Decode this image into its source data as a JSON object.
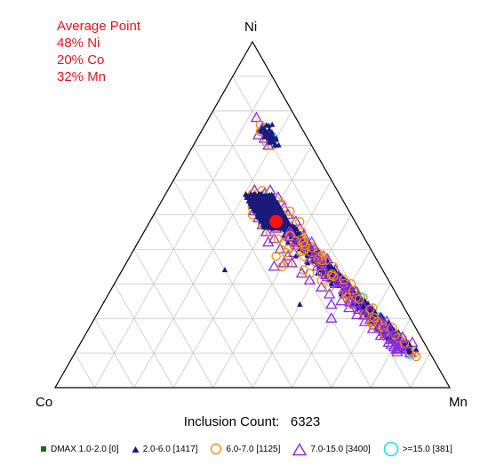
{
  "average_point": {
    "title": "Average Point",
    "ni": "48% Ni",
    "co": "20% Co",
    "mn": "32% Mn"
  },
  "vertices": {
    "top": "Ni",
    "left": "Co",
    "right": "Mn"
  },
  "inclusion_count": {
    "label": "Inclusion Count:",
    "value": "6323"
  },
  "colors": {
    "grid": "#c8c8c8",
    "frame": "#000000",
    "average_marker": "#ff1010",
    "text_red": "#e8141b"
  },
  "chart_data": {
    "type": "scatter",
    "projection": "ternary",
    "components": [
      "Ni",
      "Co",
      "Mn"
    ],
    "units": "%",
    "grid_step_percent": 10,
    "grid": true,
    "legend_position": "bottom",
    "average": {
      "Ni": 48,
      "Co": 20,
      "Mn": 32
    },
    "series": [
      {
        "name": "DMAX 1.0-2.0 [0]",
        "marker": "square",
        "color": "#1a6b1a",
        "count": 0,
        "points": []
      },
      {
        "name": "2.0-6.0 [1417]",
        "marker": "triangle-filled",
        "color": "#1a1a7a",
        "count": 1417,
        "points": [
          [
            76,
            7,
            17
          ],
          [
            72,
            10,
            18
          ],
          [
            73,
            10,
            17
          ],
          [
            72,
            8,
            20
          ],
          [
            73,
            9,
            18
          ],
          [
            71,
            10,
            19
          ],
          [
            72,
            9,
            19
          ],
          [
            70,
            9,
            21
          ],
          [
            55,
            20,
            25
          ],
          [
            54,
            21,
            25
          ],
          [
            53,
            20,
            27
          ],
          [
            55,
            18,
            27
          ],
          [
            52,
            22,
            26
          ],
          [
            51,
            21,
            28
          ],
          [
            50,
            20,
            30
          ],
          [
            49,
            21,
            30
          ],
          [
            48,
            20,
            32
          ],
          [
            47,
            21,
            32
          ],
          [
            46,
            20,
            34
          ],
          [
            50,
            18,
            32
          ],
          [
            52,
            17,
            31
          ],
          [
            49,
            19,
            32
          ],
          [
            47,
            18,
            35
          ],
          [
            45,
            19,
            36
          ],
          [
            44,
            18,
            38
          ],
          [
            53,
            22,
            25
          ],
          [
            54,
            19,
            27
          ],
          [
            51,
            17,
            32
          ],
          [
            48,
            22,
            30
          ],
          [
            46,
            22,
            32
          ],
          [
            50,
            22,
            28
          ],
          [
            44,
            20,
            36
          ],
          [
            43,
            19,
            38
          ],
          [
            45,
            17,
            38
          ],
          [
            42,
            18,
            40
          ],
          [
            41,
            17,
            42
          ],
          [
            40,
            18,
            42
          ],
          [
            39,
            17,
            44
          ],
          [
            38,
            16,
            46
          ],
          [
            37,
            16,
            47
          ],
          [
            36,
            15,
            49
          ],
          [
            35,
            15,
            50
          ],
          [
            34,
            14,
            52
          ],
          [
            33,
            13,
            54
          ],
          [
            32,
            13,
            55
          ],
          [
            31,
            12,
            57
          ],
          [
            30,
            12,
            58
          ],
          [
            29,
            11,
            60
          ],
          [
            28,
            11,
            61
          ],
          [
            27,
            10,
            63
          ],
          [
            26,
            10,
            64
          ],
          [
            25,
            9,
            66
          ],
          [
            24,
            9,
            67
          ],
          [
            23,
            8,
            69
          ],
          [
            22,
            8,
            70
          ],
          [
            21,
            7,
            72
          ],
          [
            20,
            7,
            73
          ],
          [
            19,
            6,
            75
          ],
          [
            18,
            6,
            76
          ],
          [
            17,
            6,
            77
          ],
          [
            16,
            5,
            79
          ],
          [
            15,
            5,
            80
          ],
          [
            14,
            5,
            81
          ],
          [
            13,
            4,
            83
          ],
          [
            12,
            4,
            84
          ],
          [
            40,
            15,
            45
          ],
          [
            36,
            18,
            46
          ],
          [
            34,
            16,
            50
          ],
          [
            31,
            14,
            55
          ],
          [
            28,
            13,
            59
          ],
          [
            25,
            11,
            64
          ],
          [
            22,
            10,
            68
          ],
          [
            19,
            8,
            73
          ],
          [
            16,
            7,
            77
          ],
          [
            44,
            16,
            40
          ],
          [
            42,
            20,
            38
          ],
          [
            38,
            20,
            42
          ],
          [
            33,
            17,
            50
          ],
          [
            30,
            15,
            55
          ],
          [
            27,
            14,
            59
          ],
          [
            34,
            40,
            26
          ],
          [
            24,
            26,
            50
          ],
          [
            10,
            5,
            85
          ],
          [
            11,
            3,
            86
          ]
        ]
      },
      {
        "name": "6.0-7.0 [1125]",
        "marker": "circle",
        "color": "#f08a1c",
        "count": 1125,
        "points": [
          [
            76,
            10,
            14
          ],
          [
            74,
            11,
            15
          ],
          [
            71,
            11,
            18
          ],
          [
            70,
            10,
            20
          ],
          [
            56,
            22,
            22
          ],
          [
            55,
            23,
            22
          ],
          [
            52,
            24,
            24
          ],
          [
            54,
            17,
            29
          ],
          [
            49,
            23,
            28
          ],
          [
            47,
            24,
            29
          ],
          [
            45,
            23,
            32
          ],
          [
            43,
            22,
            35
          ],
          [
            42,
            21,
            37
          ],
          [
            40,
            21,
            39
          ],
          [
            39,
            22,
            39
          ],
          [
            36,
            23,
            41
          ],
          [
            35,
            25,
            40
          ],
          [
            38,
            18,
            44
          ],
          [
            33,
            19,
            48
          ],
          [
            31,
            17,
            52
          ],
          [
            29,
            16,
            55
          ],
          [
            27,
            13,
            60
          ],
          [
            24,
            12,
            64
          ],
          [
            22,
            11,
            67
          ],
          [
            20,
            9,
            71
          ],
          [
            18,
            9,
            73
          ],
          [
            16,
            8,
            76
          ],
          [
            14,
            7,
            79
          ],
          [
            12,
            5,
            83
          ],
          [
            10,
            4,
            86
          ],
          [
            9,
            4,
            87
          ],
          [
            13,
            6,
            81
          ],
          [
            46,
            18,
            36
          ],
          [
            44,
            16,
            40
          ],
          [
            41,
            15,
            44
          ],
          [
            37,
            13,
            50
          ],
          [
            35,
            12,
            53
          ],
          [
            30,
            10,
            60
          ],
          [
            26,
            9,
            65
          ],
          [
            23,
            8,
            69
          ],
          [
            53,
            16,
            31
          ],
          [
            51,
            15,
            34
          ],
          [
            48,
            14,
            38
          ],
          [
            39,
            14,
            47
          ],
          [
            32,
            12,
            56
          ],
          [
            28,
            10,
            62
          ],
          [
            21,
            10,
            69
          ],
          [
            17,
            8,
            75
          ],
          [
            15,
            6,
            79
          ],
          [
            11,
            6,
            83
          ],
          [
            38,
            25,
            37
          ],
          [
            34,
            20,
            46
          ],
          [
            52,
            19,
            29
          ],
          [
            49,
            16,
            35
          ],
          [
            45,
            15,
            40
          ],
          [
            41,
            19,
            40
          ],
          [
            50,
            25,
            25
          ],
          [
            57,
            19,
            24
          ],
          [
            19,
            10,
            71
          ],
          [
            25,
            12,
            63
          ]
        ]
      },
      {
        "name": "7.0-15.0 [3400]",
        "marker": "triangle-open",
        "color": "#8b2be2",
        "count": 3400,
        "points": [
          [
            78,
            10,
            12
          ],
          [
            75,
            10,
            15
          ],
          [
            73,
            12,
            15
          ],
          [
            72,
            11,
            17
          ],
          [
            70,
            11,
            19
          ],
          [
            57,
            21,
            22
          ],
          [
            56,
            19,
            25
          ],
          [
            55,
            22,
            23
          ],
          [
            53,
            23,
            24
          ],
          [
            51,
            24,
            25
          ],
          [
            49,
            24,
            27
          ],
          [
            57,
            17,
            26
          ],
          [
            55,
            16,
            29
          ],
          [
            52,
            16,
            32
          ],
          [
            50,
            16,
            34
          ],
          [
            48,
            15,
            37
          ],
          [
            46,
            15,
            39
          ],
          [
            44,
            15,
            41
          ],
          [
            42,
            14,
            44
          ],
          [
            40,
            14,
            46
          ],
          [
            38,
            13,
            49
          ],
          [
            36,
            13,
            51
          ],
          [
            34,
            12,
            54
          ],
          [
            32,
            12,
            56
          ],
          [
            30,
            11,
            59
          ],
          [
            28,
            11,
            61
          ],
          [
            26,
            10,
            64
          ],
          [
            24,
            10,
            66
          ],
          [
            22,
            9,
            69
          ],
          [
            20,
            9,
            71
          ],
          [
            18,
            8,
            74
          ],
          [
            16,
            7,
            77
          ],
          [
            14,
            6,
            80
          ],
          [
            12,
            6,
            82
          ],
          [
            10,
            5,
            85
          ],
          [
            47,
            24,
            29
          ],
          [
            45,
            24,
            31
          ],
          [
            43,
            23,
            34
          ],
          [
            40,
            23,
            37
          ],
          [
            38,
            22,
            40
          ],
          [
            36,
            22,
            42
          ],
          [
            33,
            21,
            46
          ],
          [
            31,
            20,
            49
          ],
          [
            29,
            18,
            53
          ],
          [
            27,
            17,
            56
          ],
          [
            25,
            15,
            60
          ],
          [
            23,
            14,
            63
          ],
          [
            21,
            13,
            66
          ],
          [
            19,
            12,
            69
          ],
          [
            17,
            11,
            72
          ],
          [
            15,
            10,
            75
          ],
          [
            13,
            9,
            78
          ],
          [
            11,
            8,
            81
          ],
          [
            44,
            19,
            37
          ],
          [
            41,
            18,
            41
          ],
          [
            37,
            17,
            46
          ],
          [
            35,
            16,
            49
          ],
          [
            32,
            15,
            53
          ],
          [
            30,
            14,
            56
          ],
          [
            27,
            13,
            60
          ],
          [
            24,
            12,
            64
          ],
          [
            21,
            11,
            68
          ],
          [
            18,
            10,
            72
          ],
          [
            15,
            9,
            76
          ],
          [
            13,
            7,
            80
          ],
          [
            35,
            27,
            38
          ],
          [
            36,
            24,
            40
          ],
          [
            39,
            20,
            41
          ],
          [
            42,
            18,
            40
          ],
          [
            46,
            21,
            33
          ],
          [
            48,
            19,
            33
          ],
          [
            50,
            20,
            30
          ],
          [
            53,
            18,
            29
          ],
          [
            20,
            20,
            60
          ],
          [
            13,
            3,
            84
          ],
          [
            42,
            25,
            33
          ],
          [
            24,
            18,
            58
          ]
        ]
      },
      {
        "name": ">=15.0 [381]",
        "marker": "circle-large",
        "color": "#1fe0e6",
        "count": 381,
        "points": [
          [
            72,
            9,
            19
          ],
          [
            26,
            10,
            64
          ],
          [
            20,
            8,
            72
          ],
          [
            13,
            7,
            80
          ],
          [
            10,
            5,
            85
          ],
          [
            55,
            20,
            25
          ],
          [
            24,
            11,
            65
          ],
          [
            17,
            8,
            75
          ],
          [
            33,
            14,
            53
          ],
          [
            40,
            16,
            44
          ]
        ]
      }
    ]
  },
  "legend": [
    {
      "label": "DMAX 1.0-2.0 [0]",
      "icon": "filled-square-icon"
    },
    {
      "label": "2.0-6.0 [1417]",
      "icon": "filled-triangle-icon"
    },
    {
      "label": "6.0-7.0 [1125]",
      "icon": "open-circle-icon"
    },
    {
      "label": "7.0-15.0 [3400]",
      "icon": "open-triangle-icon"
    },
    {
      "label": ">=15.0 [381]",
      "icon": "open-circle-large-icon"
    }
  ]
}
